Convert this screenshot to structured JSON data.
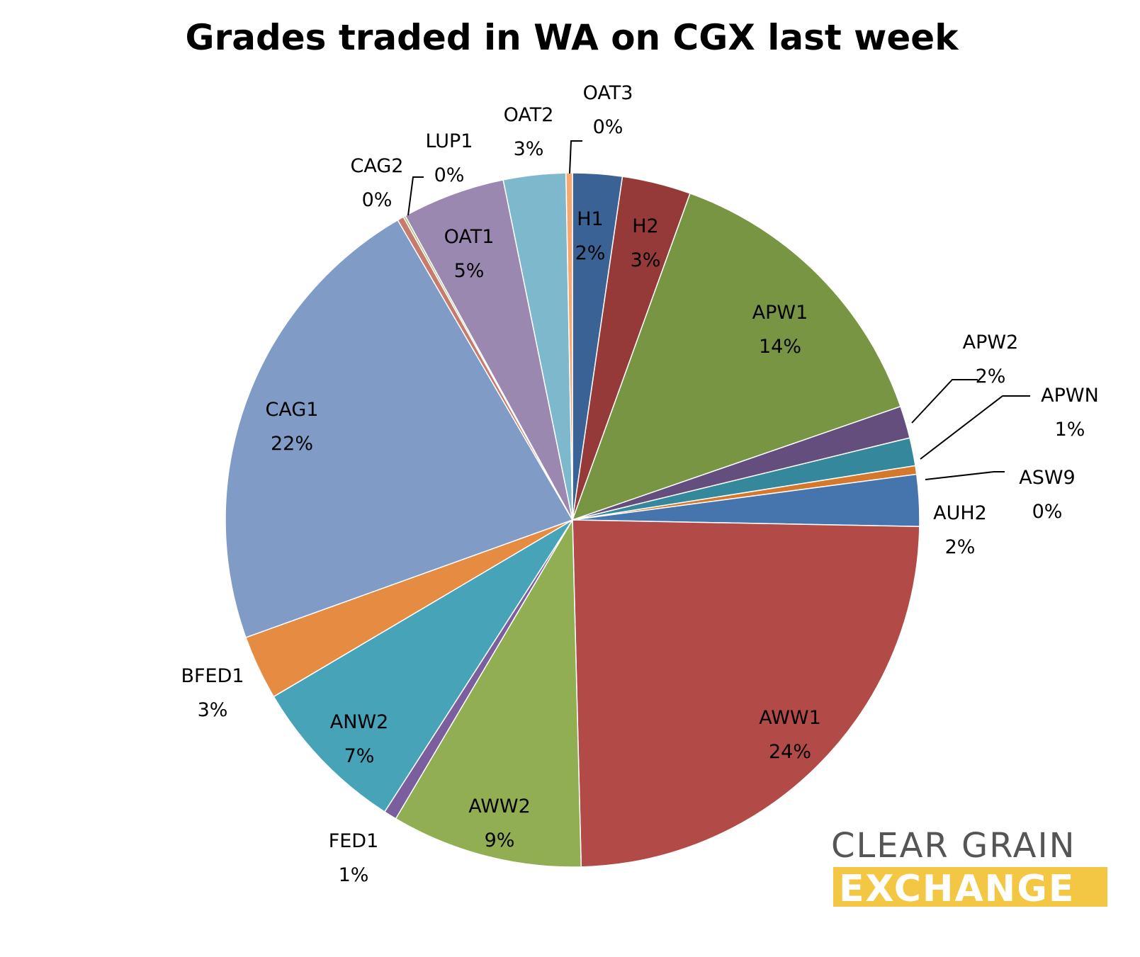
{
  "chart_data": {
    "type": "pie",
    "title": "Grades traded in WA on CGX last week",
    "slices": [
      {
        "label": "H1",
        "pct_label": "2%",
        "value": 2.3,
        "color": "#3b6294"
      },
      {
        "label": "H2",
        "pct_label": "3%",
        "value": 3.2,
        "color": "#953a38"
      },
      {
        "label": "APW1",
        "pct_label": "14%",
        "value": 14.2,
        "color": "#789543"
      },
      {
        "label": "APW2",
        "pct_label": "2%",
        "value": 1.5,
        "color": "#634e7d"
      },
      {
        "label": "APWN",
        "pct_label": "1%",
        "value": 1.3,
        "color": "#35889b"
      },
      {
        "label": "ASW9",
        "pct_label": "0%",
        "value": 0.4,
        "color": "#d4782e"
      },
      {
        "label": "AUH2",
        "pct_label": "2%",
        "value": 2.4,
        "color": "#4674ad"
      },
      {
        "label": "AWW1",
        "pct_label": "24%",
        "value": 24.3,
        "color": "#b24a48"
      },
      {
        "label": "AWW2",
        "pct_label": "9%",
        "value": 8.9,
        "color": "#91ae53"
      },
      {
        "label": "FED1",
        "pct_label": "1%",
        "value": 0.6,
        "color": "#7b5e9d"
      },
      {
        "label": "ANW2",
        "pct_label": "7%",
        "value": 7.4,
        "color": "#47a3b8"
      },
      {
        "label": "BFED1",
        "pct_label": "3%",
        "value": 3.0,
        "color": "#e68b42"
      },
      {
        "label": "CAG1",
        "pct_label": "22%",
        "value": 22.1,
        "color": "#7f9bc6"
      },
      {
        "label": "CAG2",
        "pct_label": "0%",
        "value": 0.3,
        "color": "#c77b6f"
      },
      {
        "label": "LUP1",
        "pct_label": "0%",
        "value": 0.1,
        "color": "#a8bd6f"
      },
      {
        "label": "OAT1",
        "pct_label": "5%",
        "value": 4.8,
        "color": "#9b88b0"
      },
      {
        "label": "OAT2",
        "pct_label": "3%",
        "value": 2.9,
        "color": "#7db8cd"
      },
      {
        "label": "OAT3",
        "pct_label": "0%",
        "value": 0.3,
        "color": "#f5a870"
      }
    ]
  },
  "brand": {
    "line1": "CLEAR GRAIN",
    "line2": "EXCHANGE",
    "accent_color": "#f3c744",
    "text_color": "#555555"
  }
}
